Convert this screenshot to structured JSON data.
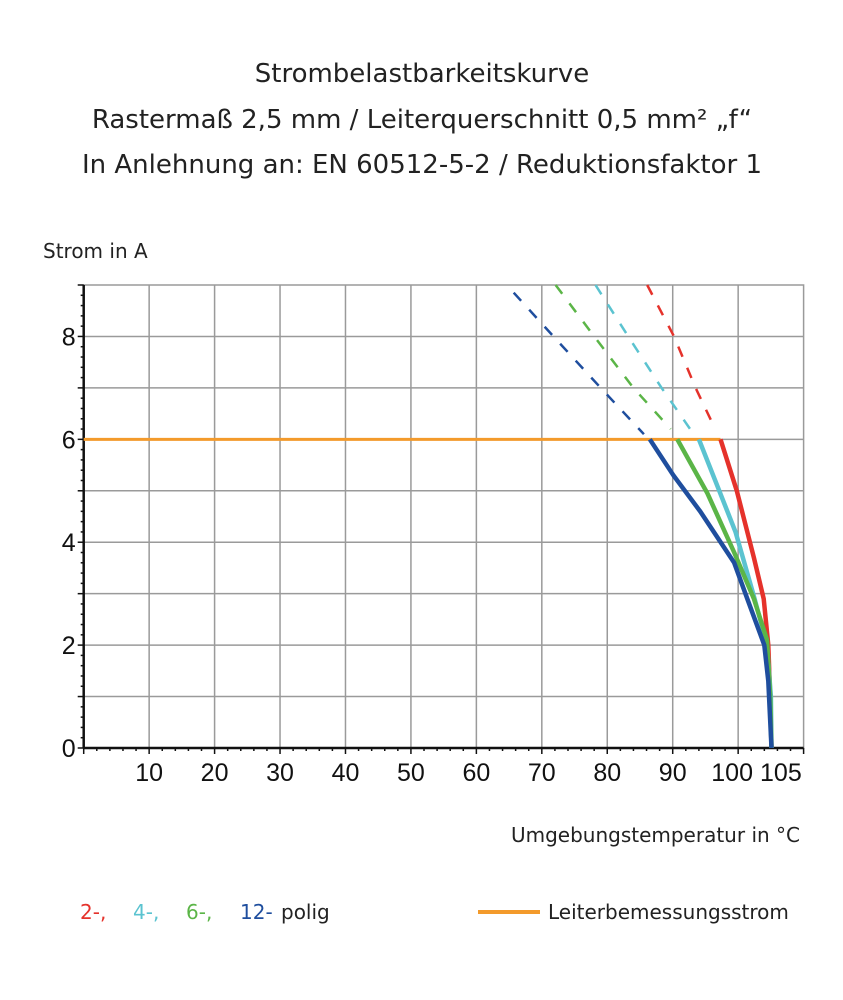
{
  "chart_data": {
    "type": "line",
    "title": [
      "Strombelastbarkeitskurve",
      "Rastermaß 2,5 mm / Leiterquerschnitt 0,5 mm² „f“",
      "In Anlehnung an: EN 60512-5-2 / Reduktionsfaktor 1"
    ],
    "xlabel": "Umgebungstemperatur in °C",
    "ylabel": "Strom in A",
    "xlim": [
      0,
      110
    ],
    "ylim": [
      0,
      9
    ],
    "x_ticks": [
      "10",
      "20",
      "30",
      "40",
      "50",
      "60",
      "70",
      "80",
      "90",
      "100",
      "105"
    ],
    "x_tick_values": [
      10,
      20,
      30,
      40,
      50,
      60,
      70,
      80,
      90,
      100,
      105
    ],
    "y_ticks": [
      "0",
      "2",
      "4",
      "6",
      "8"
    ],
    "y_tick_values": [
      0,
      2,
      4,
      6,
      8
    ],
    "grid": true,
    "legend_position": "bottom",
    "legend": {
      "series_labels": [
        "2-,",
        "4-,",
        "6-,",
        "12-"
      ],
      "series_suffix": "polig",
      "line_label": "Leiterbemessungsstrom"
    },
    "series": [
      {
        "name": "2-",
        "color": "#e5322b",
        "solid": [
          [
            97.3,
            6
          ],
          [
            99.8,
            5.0
          ],
          [
            102.4,
            3.7
          ],
          [
            103.9,
            2.9
          ],
          [
            104.6,
            2.0
          ],
          [
            104.9,
            1.0
          ],
          [
            105.1,
            0
          ]
        ],
        "dashed": [
          [
            86.1,
            9
          ],
          [
            90.2,
            8.0
          ],
          [
            93.5,
            7.0
          ],
          [
            96.5,
            6.2
          ]
        ]
      },
      {
        "name": "4-",
        "color": "#5bc3d0",
        "solid": [
          [
            94.0,
            6
          ],
          [
            96.8,
            5.1
          ],
          [
            99.6,
            4.2
          ],
          [
            102.4,
            2.95
          ],
          [
            104.4,
            2.0
          ],
          [
            105.0,
            1.0
          ],
          [
            105.1,
            0
          ]
        ],
        "dashed": [
          [
            78.2,
            9
          ],
          [
            83.2,
            8.0
          ],
          [
            88.3,
            7.0
          ],
          [
            93.2,
            6.1
          ]
        ]
      },
      {
        "name": "6-",
        "color": "#5bb547",
        "solid": [
          [
            90.7,
            6
          ],
          [
            95.3,
            4.95
          ],
          [
            99.4,
            3.8
          ],
          [
            102.4,
            2.9
          ],
          [
            104.4,
            2.1
          ],
          [
            104.9,
            1.0
          ],
          [
            105.1,
            0
          ]
        ],
        "dashed": [
          [
            72.1,
            9
          ],
          [
            78.0,
            8.0
          ],
          [
            84.0,
            7.0
          ],
          [
            89.7,
            6.2
          ]
        ]
      },
      {
        "name": "12-",
        "color": "#1f4e9e",
        "solid": [
          [
            86.5,
            6
          ],
          [
            90.1,
            5.3
          ],
          [
            94.2,
            4.6
          ],
          [
            99.4,
            3.6
          ],
          [
            101.4,
            2.9
          ],
          [
            104.0,
            2.0
          ],
          [
            104.6,
            1.3
          ],
          [
            105.1,
            0
          ]
        ],
        "dashed": [
          [
            65.7,
            8.85
          ],
          [
            72.5,
            7.9
          ],
          [
            79.0,
            7.0
          ],
          [
            85.6,
            6.1
          ]
        ]
      }
    ],
    "reference_line": {
      "name": "Leiterbemessungsstrom",
      "y": 6,
      "x_range": [
        0,
        97.3
      ],
      "color": "#f39a2b"
    }
  }
}
